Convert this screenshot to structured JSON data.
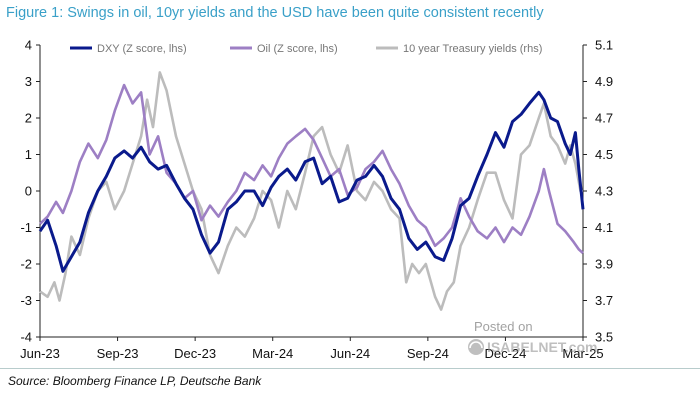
{
  "title": "Figure 1: Swings in oil, 10yr yields and the USD have been quite consistent recently",
  "source": "Source: Bloomberg Finance LP, Deutsche Bank",
  "watermark": {
    "line1": "Posted on",
    "line2": "ISABELNET.com"
  },
  "chart_data": {
    "type": "line",
    "x_ticks": [
      "Jun-23",
      "Sep-23",
      "Dec-23",
      "Mar-24",
      "Jun-24",
      "Sep-24",
      "Dec-24",
      "Mar-25"
    ],
    "x_range": [
      "2023-06-01",
      "2025-03-01"
    ],
    "y_left": {
      "range": [
        -4,
        4
      ],
      "ticks": [
        "4",
        "3",
        "2",
        "1",
        "0",
        "-1",
        "-2",
        "-3",
        "-4"
      ]
    },
    "y_right": {
      "range": [
        3.5,
        5.1
      ],
      "ticks": [
        "5.1",
        "4.9",
        "4.7",
        "4.5",
        "4.3",
        "4.1",
        "3.9",
        "3.7",
        "3.5"
      ]
    },
    "grid": false,
    "legend_position": "top",
    "series": [
      {
        "name": "DXY (Z score, lhs)",
        "axis": "left",
        "color": "#0a1a8c",
        "points": [
          [
            "2023-06-01",
            -1.1
          ],
          [
            "2023-06-10",
            -0.8
          ],
          [
            "2023-06-20",
            -1.5
          ],
          [
            "2023-06-28",
            -2.2
          ],
          [
            "2023-07-08",
            -1.8
          ],
          [
            "2023-07-18",
            -1.4
          ],
          [
            "2023-07-28",
            -0.6
          ],
          [
            "2023-08-08",
            0.0
          ],
          [
            "2023-08-18",
            0.4
          ],
          [
            "2023-08-28",
            0.9
          ],
          [
            "2023-09-08",
            1.1
          ],
          [
            "2023-09-18",
            0.9
          ],
          [
            "2023-09-28",
            1.2
          ],
          [
            "2023-10-08",
            0.8
          ],
          [
            "2023-10-18",
            0.6
          ],
          [
            "2023-10-28",
            0.7
          ],
          [
            "2023-11-08",
            0.2
          ],
          [
            "2023-11-18",
            -0.2
          ],
          [
            "2023-11-28",
            -0.5
          ],
          [
            "2023-12-08",
            -1.2
          ],
          [
            "2023-12-18",
            -1.7
          ],
          [
            "2023-12-28",
            -1.4
          ],
          [
            "2024-01-08",
            -0.5
          ],
          [
            "2024-01-18",
            -0.3
          ],
          [
            "2024-01-28",
            0.0
          ],
          [
            "2024-02-08",
            0.0
          ],
          [
            "2024-02-18",
            -0.4
          ],
          [
            "2024-02-28",
            0.1
          ],
          [
            "2024-03-08",
            0.4
          ],
          [
            "2024-03-18",
            0.6
          ],
          [
            "2024-03-28",
            0.3
          ],
          [
            "2024-04-08",
            0.8
          ],
          [
            "2024-04-18",
            0.9
          ],
          [
            "2024-04-28",
            0.2
          ],
          [
            "2024-05-08",
            0.4
          ],
          [
            "2024-05-18",
            -0.3
          ],
          [
            "2024-05-28",
            -0.2
          ],
          [
            "2024-06-08",
            0.3
          ],
          [
            "2024-06-18",
            0.4
          ],
          [
            "2024-06-28",
            0.7
          ],
          [
            "2024-07-08",
            0.4
          ],
          [
            "2024-07-18",
            -0.2
          ],
          [
            "2024-07-28",
            -0.5
          ],
          [
            "2024-08-08",
            -1.3
          ],
          [
            "2024-08-18",
            -1.6
          ],
          [
            "2024-08-28",
            -1.4
          ],
          [
            "2024-09-08",
            -1.8
          ],
          [
            "2024-09-18",
            -1.9
          ],
          [
            "2024-09-28",
            -1.3
          ],
          [
            "2024-10-08",
            -0.4
          ],
          [
            "2024-10-18",
            -0.2
          ],
          [
            "2024-10-28",
            0.4
          ],
          [
            "2024-11-08",
            1.0
          ],
          [
            "2024-11-18",
            1.6
          ],
          [
            "2024-11-28",
            1.2
          ],
          [
            "2024-12-08",
            1.9
          ],
          [
            "2024-12-18",
            2.1
          ],
          [
            "2024-12-28",
            2.4
          ],
          [
            "2025-01-08",
            2.7
          ],
          [
            "2025-01-14",
            2.5
          ],
          [
            "2025-01-22",
            2.0
          ],
          [
            "2025-01-30",
            1.9
          ],
          [
            "2025-02-08",
            1.3
          ],
          [
            "2025-02-14",
            1.0
          ],
          [
            "2025-02-20",
            1.6
          ],
          [
            "2025-02-24",
            0.6
          ],
          [
            "2025-03-01",
            -0.5
          ]
        ]
      },
      {
        "name": "Oil (Z score, lhs)",
        "axis": "left",
        "color": "#9d7fc4",
        "points": [
          [
            "2023-06-01",
            -0.9
          ],
          [
            "2023-06-10",
            -0.7
          ],
          [
            "2023-06-20",
            -0.3
          ],
          [
            "2023-06-28",
            -0.6
          ],
          [
            "2023-07-08",
            0.0
          ],
          [
            "2023-07-18",
            0.8
          ],
          [
            "2023-07-28",
            1.3
          ],
          [
            "2023-08-08",
            0.9
          ],
          [
            "2023-08-18",
            1.4
          ],
          [
            "2023-08-28",
            2.2
          ],
          [
            "2023-09-08",
            2.9
          ],
          [
            "2023-09-18",
            2.4
          ],
          [
            "2023-09-28",
            2.7
          ],
          [
            "2023-10-08",
            1.0
          ],
          [
            "2023-10-18",
            1.5
          ],
          [
            "2023-10-28",
            0.5
          ],
          [
            "2023-11-08",
            0.2
          ],
          [
            "2023-11-18",
            -0.2
          ],
          [
            "2023-11-28",
            0.0
          ],
          [
            "2023-12-08",
            -0.8
          ],
          [
            "2023-12-18",
            -0.4
          ],
          [
            "2023-12-28",
            -0.7
          ],
          [
            "2024-01-08",
            -0.3
          ],
          [
            "2024-01-18",
            0.0
          ],
          [
            "2024-01-28",
            0.5
          ],
          [
            "2024-02-08",
            0.3
          ],
          [
            "2024-02-18",
            0.7
          ],
          [
            "2024-02-28",
            0.4
          ],
          [
            "2024-03-08",
            0.9
          ],
          [
            "2024-03-18",
            1.3
          ],
          [
            "2024-03-28",
            1.5
          ],
          [
            "2024-04-08",
            1.7
          ],
          [
            "2024-04-18",
            1.4
          ],
          [
            "2024-04-28",
            0.9
          ],
          [
            "2024-05-08",
            0.4
          ],
          [
            "2024-05-18",
            0.6
          ],
          [
            "2024-05-28",
            -0.1
          ],
          [
            "2024-06-08",
            0.1
          ],
          [
            "2024-06-18",
            0.6
          ],
          [
            "2024-06-28",
            0.8
          ],
          [
            "2024-07-08",
            1.1
          ],
          [
            "2024-07-18",
            0.6
          ],
          [
            "2024-07-28",
            0.2
          ],
          [
            "2024-08-08",
            -0.4
          ],
          [
            "2024-08-18",
            -0.8
          ],
          [
            "2024-08-28",
            -1.0
          ],
          [
            "2024-09-08",
            -1.5
          ],
          [
            "2024-09-18",
            -1.3
          ],
          [
            "2024-09-28",
            -1.0
          ],
          [
            "2024-10-08",
            -0.2
          ],
          [
            "2024-10-18",
            -0.7
          ],
          [
            "2024-10-28",
            -1.1
          ],
          [
            "2024-11-08",
            -1.3
          ],
          [
            "2024-11-18",
            -1.0
          ],
          [
            "2024-11-28",
            -1.4
          ],
          [
            "2024-12-08",
            -1.0
          ],
          [
            "2024-12-18",
            -1.2
          ],
          [
            "2024-12-28",
            -0.7
          ],
          [
            "2025-01-08",
            0.0
          ],
          [
            "2025-01-14",
            0.6
          ],
          [
            "2025-01-20",
            0.0
          ],
          [
            "2025-01-30",
            -0.9
          ],
          [
            "2025-02-08",
            -1.1
          ],
          [
            "2025-02-18",
            -1.4
          ],
          [
            "2025-02-24",
            -1.6
          ],
          [
            "2025-03-01",
            -1.7
          ]
        ]
      },
      {
        "name": "10 year Treasury yields (rhs)",
        "axis": "right",
        "color": "#bcbcbc",
        "points": [
          [
            "2023-06-01",
            3.75
          ],
          [
            "2023-06-10",
            3.72
          ],
          [
            "2023-06-18",
            3.8
          ],
          [
            "2023-06-24",
            3.7
          ],
          [
            "2023-07-01",
            3.85
          ],
          [
            "2023-07-08",
            4.05
          ],
          [
            "2023-07-18",
            3.95
          ],
          [
            "2023-07-28",
            4.15
          ],
          [
            "2023-08-08",
            4.3
          ],
          [
            "2023-08-18",
            4.35
          ],
          [
            "2023-08-28",
            4.2
          ],
          [
            "2023-09-08",
            4.3
          ],
          [
            "2023-09-18",
            4.45
          ],
          [
            "2023-09-28",
            4.6
          ],
          [
            "2023-10-05",
            4.8
          ],
          [
            "2023-10-12",
            4.65
          ],
          [
            "2023-10-20",
            4.95
          ],
          [
            "2023-10-28",
            4.85
          ],
          [
            "2023-11-08",
            4.6
          ],
          [
            "2023-11-18",
            4.45
          ],
          [
            "2023-11-28",
            4.3
          ],
          [
            "2023-12-08",
            4.2
          ],
          [
            "2023-12-18",
            3.95
          ],
          [
            "2023-12-28",
            3.85
          ],
          [
            "2024-01-08",
            4.0
          ],
          [
            "2024-01-18",
            4.1
          ],
          [
            "2024-01-28",
            4.05
          ],
          [
            "2024-02-08",
            4.15
          ],
          [
            "2024-02-18",
            4.3
          ],
          [
            "2024-02-28",
            4.25
          ],
          [
            "2024-03-08",
            4.1
          ],
          [
            "2024-03-18",
            4.3
          ],
          [
            "2024-03-28",
            4.2
          ],
          [
            "2024-04-08",
            4.4
          ],
          [
            "2024-04-18",
            4.6
          ],
          [
            "2024-04-28",
            4.65
          ],
          [
            "2024-05-08",
            4.5
          ],
          [
            "2024-05-18",
            4.4
          ],
          [
            "2024-05-28",
            4.55
          ],
          [
            "2024-06-08",
            4.3
          ],
          [
            "2024-06-18",
            4.25
          ],
          [
            "2024-06-28",
            4.35
          ],
          [
            "2024-07-08",
            4.3
          ],
          [
            "2024-07-18",
            4.2
          ],
          [
            "2024-07-28",
            4.15
          ],
          [
            "2024-08-05",
            3.8
          ],
          [
            "2024-08-12",
            3.9
          ],
          [
            "2024-08-20",
            3.85
          ],
          [
            "2024-08-28",
            3.9
          ],
          [
            "2024-09-08",
            3.72
          ],
          [
            "2024-09-15",
            3.65
          ],
          [
            "2024-09-22",
            3.75
          ],
          [
            "2024-09-30",
            3.8
          ],
          [
            "2024-10-08",
            4.0
          ],
          [
            "2024-10-18",
            4.1
          ],
          [
            "2024-10-28",
            4.25
          ],
          [
            "2024-11-08",
            4.4
          ],
          [
            "2024-11-18",
            4.4
          ],
          [
            "2024-11-28",
            4.25
          ],
          [
            "2024-12-08",
            4.15
          ],
          [
            "2024-12-18",
            4.5
          ],
          [
            "2024-12-28",
            4.55
          ],
          [
            "2025-01-08",
            4.7
          ],
          [
            "2025-01-14",
            4.78
          ],
          [
            "2025-01-22",
            4.6
          ],
          [
            "2025-01-30",
            4.55
          ],
          [
            "2025-02-08",
            4.45
          ],
          [
            "2025-02-14",
            4.55
          ],
          [
            "2025-02-20",
            4.45
          ],
          [
            "2025-02-26",
            4.3
          ],
          [
            "2025-03-01",
            4.3
          ]
        ]
      }
    ]
  }
}
